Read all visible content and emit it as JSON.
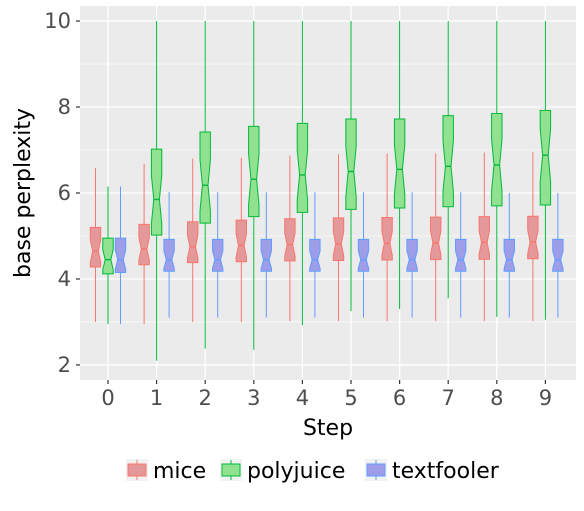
{
  "chart_data": {
    "type": "boxplot",
    "notched": true,
    "xlabel": "Step",
    "ylabel": "base perplexity",
    "categories": [
      "0",
      "1",
      "2",
      "3",
      "4",
      "5",
      "6",
      "7",
      "8",
      "9"
    ],
    "y_ticks": [
      "2",
      "4",
      "6",
      "8",
      "10"
    ],
    "ylim": [
      1.65,
      10.35
    ],
    "grid": true,
    "legend_position": "bottom",
    "series": [
      {
        "name": "mice",
        "color": "#f8766d",
        "fill": "#e5989a",
        "boxes": [
          {
            "min": 3.0,
            "q1": 4.28,
            "median": 4.65,
            "q3": 5.2,
            "max": 6.58
          },
          {
            "min": 2.95,
            "q1": 4.33,
            "median": 4.7,
            "q3": 5.27,
            "max": 6.68
          },
          {
            "min": 3.0,
            "q1": 4.38,
            "median": 4.75,
            "q3": 5.33,
            "max": 6.8
          },
          {
            "min": 3.0,
            "q1": 4.4,
            "median": 4.78,
            "q3": 5.37,
            "max": 6.82
          },
          {
            "min": 3.02,
            "q1": 4.42,
            "median": 4.8,
            "q3": 5.4,
            "max": 6.87
          },
          {
            "min": 3.02,
            "q1": 4.43,
            "median": 4.82,
            "q3": 5.42,
            "max": 6.9
          },
          {
            "min": 3.02,
            "q1": 4.44,
            "median": 4.83,
            "q3": 5.43,
            "max": 6.92
          },
          {
            "min": 3.02,
            "q1": 4.45,
            "median": 4.84,
            "q3": 5.44,
            "max": 6.92
          },
          {
            "min": 3.02,
            "q1": 4.46,
            "median": 4.85,
            "q3": 5.45,
            "max": 6.94
          },
          {
            "min": 3.02,
            "q1": 4.47,
            "median": 4.86,
            "q3": 5.46,
            "max": 6.96
          }
        ]
      },
      {
        "name": "polyjuice",
        "color": "#00ba38",
        "fill": "#90e190",
        "boxes": [
          {
            "min": 2.95,
            "q1": 4.12,
            "median": 4.45,
            "q3": 4.95,
            "max": 6.15
          },
          {
            "min": 2.1,
            "q1": 5.02,
            "median": 5.85,
            "q3": 7.02,
            "max": 10.0
          },
          {
            "min": 2.38,
            "q1": 5.3,
            "median": 6.18,
            "q3": 7.42,
            "max": 10.0
          },
          {
            "min": 2.35,
            "q1": 5.45,
            "median": 6.32,
            "q3": 7.55,
            "max": 10.0
          },
          {
            "min": 2.92,
            "q1": 5.55,
            "median": 6.42,
            "q3": 7.62,
            "max": 10.0
          },
          {
            "min": 3.25,
            "q1": 5.62,
            "median": 6.5,
            "q3": 7.72,
            "max": 10.0
          },
          {
            "min": 3.3,
            "q1": 5.65,
            "median": 6.55,
            "q3": 7.72,
            "max": 10.0
          },
          {
            "min": 3.55,
            "q1": 5.68,
            "median": 6.62,
            "q3": 7.8,
            "max": 10.0
          },
          {
            "min": 3.12,
            "q1": 5.7,
            "median": 6.65,
            "q3": 7.85,
            "max": 10.0
          },
          {
            "min": 3.05,
            "q1": 5.72,
            "median": 6.88,
            "q3": 7.92,
            "max": 10.0
          }
        ]
      },
      {
        "name": "textfooler",
        "color": "#619cff",
        "fill": "#9e9ee8",
        "boxes": [
          {
            "min": 2.95,
            "q1": 4.15,
            "median": 4.45,
            "q3": 4.95,
            "max": 6.15
          },
          {
            "min": 3.1,
            "q1": 4.18,
            "median": 4.45,
            "q3": 4.92,
            "max": 6.02
          },
          {
            "min": 3.1,
            "q1": 4.18,
            "median": 4.45,
            "q3": 4.92,
            "max": 6.02
          },
          {
            "min": 3.1,
            "q1": 4.18,
            "median": 4.45,
            "q3": 4.92,
            "max": 6.02
          },
          {
            "min": 3.1,
            "q1": 4.18,
            "median": 4.45,
            "q3": 4.92,
            "max": 6.02
          },
          {
            "min": 3.1,
            "q1": 4.18,
            "median": 4.45,
            "q3": 4.92,
            "max": 6.02
          },
          {
            "min": 3.1,
            "q1": 4.18,
            "median": 4.45,
            "q3": 4.92,
            "max": 6.02
          },
          {
            "min": 3.1,
            "q1": 4.18,
            "median": 4.45,
            "q3": 4.92,
            "max": 6.02
          },
          {
            "min": 3.1,
            "q1": 4.18,
            "median": 4.45,
            "q3": 4.92,
            "max": 6.0
          },
          {
            "min": 3.1,
            "q1": 4.18,
            "median": 4.45,
            "q3": 4.92,
            "max": 6.0
          }
        ]
      }
    ],
    "panel_background": "#ebebeb",
    "grid_color": "#ffffff"
  }
}
